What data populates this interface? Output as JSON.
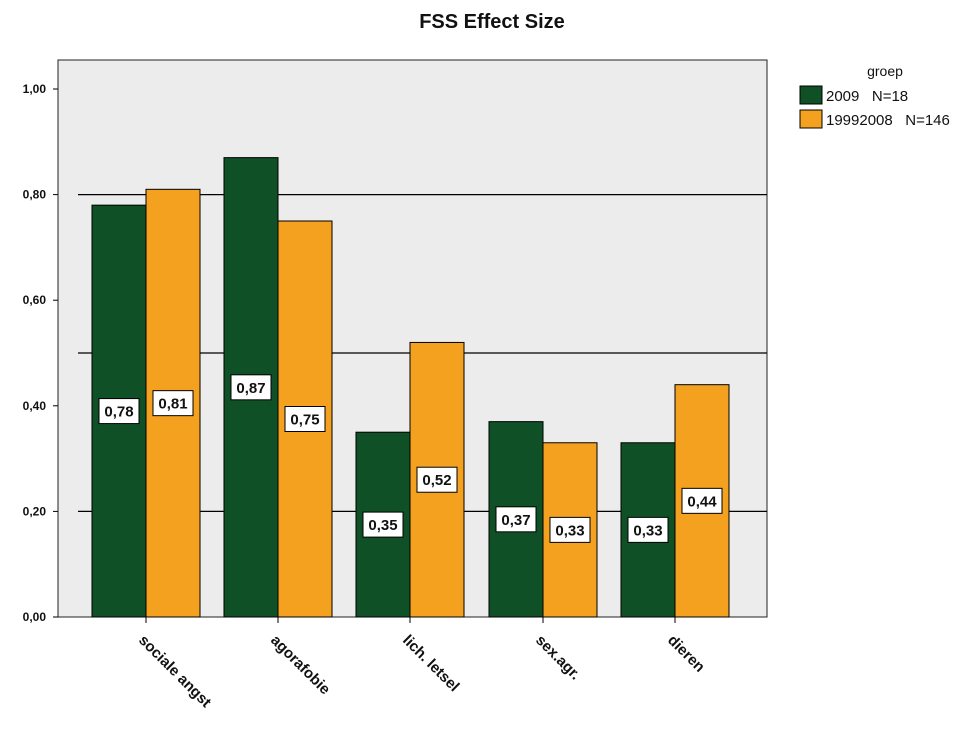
{
  "chart_data": {
    "type": "bar",
    "title": "FSS Effect Size",
    "xlabel": "",
    "ylabel": "",
    "categories": [
      "sociale angst",
      "agorafobie",
      "lich. letsel",
      "sex.agr.",
      "dieren"
    ],
    "series": [
      {
        "name": "2009   N=18",
        "color": "#0f5027",
        "values": [
          0.78,
          0.87,
          0.35,
          0.37,
          0.33
        ],
        "labels": [
          "0,78",
          "0,87",
          "0,35",
          "0,37",
          "0,33"
        ]
      },
      {
        "name": "19992008   N=146",
        "color": "#f3a11f",
        "values": [
          0.81,
          0.75,
          0.52,
          0.33,
          0.44
        ],
        "labels": [
          "0,81",
          "0,75",
          "0,52",
          "0,33",
          "0,44"
        ]
      }
    ],
    "ylim": [
      0,
      1.1
    ],
    "yticks": [
      0,
      0.2,
      0.4,
      0.6,
      0.8,
      1.0
    ],
    "ytick_labels": [
      "0,00",
      "0,20",
      "0,40",
      "0,60",
      "0,80",
      "1,00"
    ],
    "reference_lines": [
      0.8,
      0.5,
      0.2
    ],
    "legend": {
      "title": "groep",
      "placement": "top-right outside"
    },
    "plot_background": "#ececec",
    "grid": false
  }
}
